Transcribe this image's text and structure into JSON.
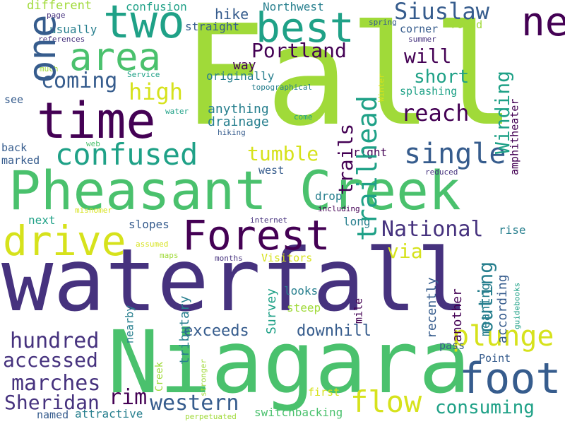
{
  "palette": {
    "purple": "#440154",
    "indigo": "#46327e",
    "blue": "#365c8d",
    "teal": "#277f8e",
    "green": "#1fa187",
    "lightgreen": "#4ac16d",
    "lime": "#a0da39",
    "yellow": "#d6e21c"
  },
  "words": [
    {
      "id": "waterfall",
      "text": "waterfall"
    },
    {
      "id": "fall",
      "text": "Fall"
    },
    {
      "id": "niagara",
      "text": "Niagara"
    },
    {
      "id": "pheasant-creek",
      "text": "Pheasant Creek"
    },
    {
      "id": "time",
      "text": "time"
    },
    {
      "id": "two",
      "text": "two"
    },
    {
      "id": "best",
      "text": "best"
    },
    {
      "id": "area",
      "text": "area"
    },
    {
      "id": "one",
      "text": "one"
    },
    {
      "id": "neither",
      "text": "neither"
    },
    {
      "id": "forest",
      "text": "Forest"
    },
    {
      "id": "drive",
      "text": "drive"
    },
    {
      "id": "confused",
      "text": "confused"
    },
    {
      "id": "foot",
      "text": "foot"
    },
    {
      "id": "single",
      "text": "single"
    },
    {
      "id": "plunge",
      "text": "plunge"
    },
    {
      "id": "flow",
      "text": "flow"
    },
    {
      "id": "siuslaw",
      "text": "Siuslaw"
    },
    {
      "id": "portland",
      "text": "Portland"
    },
    {
      "id": "national",
      "text": "National"
    },
    {
      "id": "high",
      "text": "high"
    },
    {
      "id": "coming",
      "text": "coming"
    },
    {
      "id": "reach",
      "text": "reach"
    },
    {
      "id": "trails",
      "text": "trails"
    },
    {
      "id": "trailhead",
      "text": "trailhead"
    },
    {
      "id": "winding",
      "text": "Winding"
    },
    {
      "id": "tumble",
      "text": "tumble"
    },
    {
      "id": "will",
      "text": "will"
    },
    {
      "id": "short",
      "text": "short"
    },
    {
      "id": "via",
      "text": "via"
    },
    {
      "id": "outing",
      "text": "outing"
    },
    {
      "id": "hundred",
      "text": "hundred"
    },
    {
      "id": "accessed",
      "text": "accessed"
    },
    {
      "id": "marches",
      "text": "marches"
    },
    {
      "id": "sheridan",
      "text": "Sheridan"
    },
    {
      "id": "rim",
      "text": "rim"
    },
    {
      "id": "western",
      "text": "western"
    },
    {
      "id": "consuming",
      "text": "consuming"
    },
    {
      "id": "exceeds",
      "text": "exceeds"
    },
    {
      "id": "downhill",
      "text": "downhill"
    },
    {
      "id": "hike",
      "text": "hike"
    },
    {
      "id": "different",
      "text": "different"
    },
    {
      "id": "confusion",
      "text": "confusion"
    },
    {
      "id": "northwest",
      "text": "Northwest"
    },
    {
      "id": "usually",
      "text": "usually"
    },
    {
      "id": "straight",
      "text": "straight"
    },
    {
      "id": "corner",
      "text": "corner"
    },
    {
      "id": "round",
      "text": "round"
    },
    {
      "id": "way",
      "text": "way"
    },
    {
      "id": "originally",
      "text": "originally"
    },
    {
      "id": "splashing",
      "text": "splashing"
    },
    {
      "id": "anything",
      "text": "anything"
    },
    {
      "id": "drainage",
      "text": "drainage"
    },
    {
      "id": "see",
      "text": "see"
    },
    {
      "id": "back",
      "text": "back"
    },
    {
      "id": "marked",
      "text": "marked"
    },
    {
      "id": "right",
      "text": "right"
    },
    {
      "id": "west",
      "text": "west"
    },
    {
      "id": "drop",
      "text": "drop"
    },
    {
      "id": "long",
      "text": "long"
    },
    {
      "id": "next",
      "text": "next"
    },
    {
      "id": "slopes",
      "text": "slopes"
    },
    {
      "id": "rise",
      "text": "rise"
    },
    {
      "id": "meaning",
      "text": "meaning"
    },
    {
      "id": "recently",
      "text": "recently"
    },
    {
      "id": "another",
      "text": "another"
    },
    {
      "id": "according",
      "text": "according"
    },
    {
      "id": "guidebooks",
      "text": "guidebooks"
    },
    {
      "id": "amphitheater",
      "text": "amphitheater"
    },
    {
      "id": "visitors",
      "text": "Visitors"
    },
    {
      "id": "survey",
      "text": "Survey"
    },
    {
      "id": "tributary",
      "text": "tributary"
    },
    {
      "id": "nearby",
      "text": "nearby"
    },
    {
      "id": "looks",
      "text": "looks"
    },
    {
      "id": "steep",
      "text": "steep"
    },
    {
      "id": "mile",
      "text": "mile"
    },
    {
      "id": "pass",
      "text": "pass"
    },
    {
      "id": "point",
      "text": "Point"
    },
    {
      "id": "creek-small",
      "text": "Creek"
    },
    {
      "id": "stronger",
      "text": "stronger"
    },
    {
      "id": "first",
      "text": "first"
    },
    {
      "id": "switchbacking",
      "text": "switchbacking"
    },
    {
      "id": "named",
      "text": "named"
    },
    {
      "id": "attractive",
      "text": "attractive"
    },
    {
      "id": "perpetuated",
      "text": "perpetuated"
    },
    {
      "id": "page",
      "text": "page"
    },
    {
      "id": "references",
      "text": "references"
    },
    {
      "id": "much",
      "text": "much"
    },
    {
      "id": "service",
      "text": "Service"
    },
    {
      "id": "topographical",
      "text": "topographical"
    },
    {
      "id": "water",
      "text": "water"
    },
    {
      "id": "come",
      "text": "come"
    },
    {
      "id": "hiking",
      "text": "hiking"
    },
    {
      "id": "web",
      "text": "web"
    },
    {
      "id": "spring",
      "text": "spring"
    },
    {
      "id": "summer",
      "text": "summer"
    },
    {
      "id": "winter",
      "text": "Winter"
    },
    {
      "id": "reduced",
      "text": "reduced"
    },
    {
      "id": "including",
      "text": "including"
    },
    {
      "id": "internet",
      "text": "internet"
    },
    {
      "id": "misnomer",
      "text": "misnomer"
    },
    {
      "id": "assumed",
      "text": "assumed"
    },
    {
      "id": "maps",
      "text": "maps"
    },
    {
      "id": "months",
      "text": "months"
    }
  ]
}
